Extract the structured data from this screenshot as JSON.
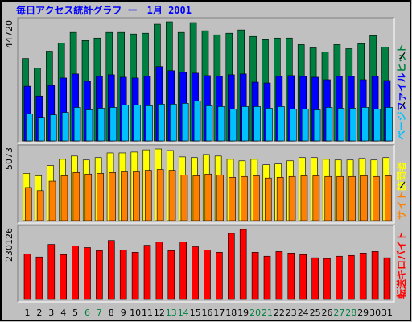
{
  "chart_data": [
    {
      "type": "bar",
      "title": "毎日アクセス統計グラフ ー　1月 2001",
      "ylim": [
        0,
        44720
      ],
      "yticks": [
        44720
      ],
      "series": [
        {
          "name": "ヒット",
          "color": "#008040",
          "values": [
            30940,
            27260,
            33690,
            36760,
            40740,
            37680,
            38600,
            40740,
            40740,
            40130,
            40430,
            43800,
            44720,
            40740,
            44410,
            41350,
            39820,
            40430,
            41660,
            39210,
            37980,
            38600,
            38600,
            36140,
            34920,
            33390,
            36140,
            34610,
            36450,
            39510,
            35220
          ]
        },
        {
          "name": "ファイル",
          "color": "#0000ff",
          "values": [
            20520,
            16850,
            20830,
            23590,
            25120,
            22360,
            24200,
            24810,
            23890,
            23590,
            24200,
            27870,
            26340,
            25730,
            25420,
            24500,
            24200,
            24810,
            25120,
            22050,
            21750,
            24200,
            24500,
            24200,
            23890,
            22970,
            24200,
            24200,
            22970,
            24200,
            22670
          ]
        },
        {
          "name": "ページ",
          "color": "#00c0ff",
          "values": [
            10110,
            8880,
            9800,
            10720,
            12560,
            11640,
            12250,
            12560,
            13480,
            13480,
            13170,
            13780,
            13780,
            14090,
            15010,
            13170,
            12860,
            11950,
            12860,
            12860,
            12250,
            12860,
            11950,
            11950,
            11640,
            12560,
            12250,
            12250,
            12560,
            11950,
            12560
          ]
        }
      ]
    },
    {
      "type": "bar",
      "ylim": [
        0,
        5073
      ],
      "yticks": [
        5073
      ],
      "series": [
        {
          "name": "訪問者",
          "color": "#ffff00",
          "values": [
            3340,
            3170,
            3900,
            4340,
            4570,
            4290,
            4460,
            4790,
            4790,
            4850,
            5010,
            5073,
            4960,
            4510,
            4460,
            4680,
            4570,
            4340,
            4230,
            4340,
            3950,
            4010,
            4230,
            4460,
            4460,
            4340,
            4290,
            4290,
            4400,
            4290,
            4460
          ]
        },
        {
          "name": "サイト",
          "color": "#ff8000",
          "values": [
            2340,
            2120,
            2790,
            3170,
            3400,
            3290,
            3340,
            3400,
            3450,
            3450,
            3560,
            3620,
            3560,
            3230,
            3170,
            3290,
            3230,
            3060,
            3120,
            3170,
            3010,
            3060,
            3120,
            3170,
            3170,
            3120,
            3120,
            3120,
            3170,
            3120,
            3170
          ]
        }
      ]
    },
    {
      "type": "bar",
      "ylim": [
        0,
        230126
      ],
      "yticks": [
        230126
      ],
      "categories": [
        "1",
        "2",
        "3",
        "4",
        "5",
        "6",
        "7",
        "8",
        "9",
        "10",
        "11",
        "12",
        "13",
        "14",
        "15",
        "16",
        "17",
        "18",
        "19",
        "20",
        "21",
        "22",
        "23",
        "24",
        "25",
        "26",
        "27",
        "28",
        "29",
        "30",
        "31"
      ],
      "category_colors": [
        "#000000",
        "#000000",
        "#000000",
        "#000000",
        "#000000",
        "#008040",
        "#008040",
        "#000000",
        "#000000",
        "#000000",
        "#000000",
        "#000000",
        "#008040",
        "#008040",
        "#000000",
        "#000000",
        "#000000",
        "#000000",
        "#000000",
        "#008040",
        "#008040",
        "#000000",
        "#000000",
        "#000000",
        "#000000",
        "#000000",
        "#008040",
        "#008040",
        "#000000",
        "#000000",
        "#000000"
      ],
      "series": [
        {
          "name": "転送キロバイト",
          "color": "#ff0000",
          "values": [
            150000,
            139600,
            181000,
            147400,
            175800,
            170700,
            160300,
            193900,
            162900,
            155200,
            178400,
            188800,
            160300,
            188800,
            173300,
            162900,
            155200,
            217200,
            230126,
            155200,
            142200,
            157700,
            152600,
            147400,
            137100,
            134500,
            142200,
            144800,
            152600,
            157700,
            137100
          ]
        }
      ]
    }
  ]
}
